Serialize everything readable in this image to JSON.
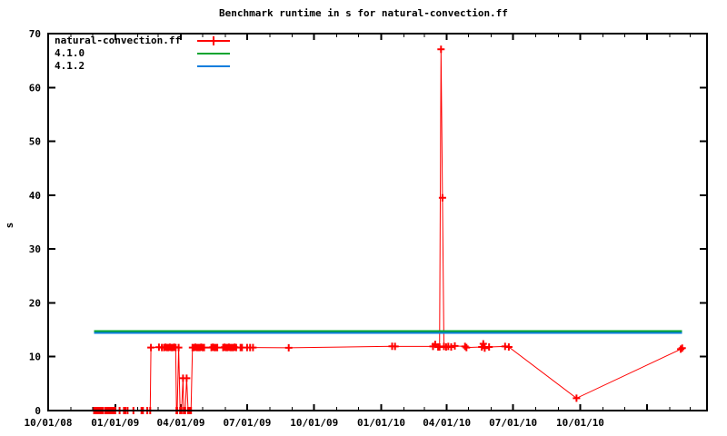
{
  "chart_data": {
    "type": "line",
    "title": "Benchmark runtime in s for natural-convection.ff",
    "xlabel": "",
    "ylabel": "s",
    "ylim": [
      0,
      70
    ],
    "y_ticks": [
      0,
      10,
      20,
      30,
      40,
      50,
      60,
      70
    ],
    "x_range": [
      "2008-10-01",
      "2011-03-24"
    ],
    "x_tick_labels": [
      {
        "date": "2008-10-01",
        "label": "10/01/08"
      },
      {
        "date": "2009-01-01",
        "label": "01/01/09"
      },
      {
        "date": "2009-04-01",
        "label": "04/01/09"
      },
      {
        "date": "2009-07-01",
        "label": "07/01/09"
      },
      {
        "date": "2009-10-01",
        "label": "10/01/09"
      },
      {
        "date": "2010-01-01",
        "label": "01/01/10"
      },
      {
        "date": "2010-04-01",
        "label": "04/01/10"
      },
      {
        "date": "2010-07-01",
        "label": "07/01/10"
      },
      {
        "date": "2010-10-01",
        "label": "10/01/10"
      }
    ],
    "grid": false,
    "legend_position": "top-left",
    "axis_color": "#000000",
    "background_color": "#ffffff",
    "series": [
      {
        "name": "natural-convection.ff",
        "type": "linespoints",
        "marker": "plus",
        "color": "#ff0000",
        "points": [
          [
            "2008-12-03",
            0
          ],
          [
            "2008-12-05",
            0
          ],
          [
            "2008-12-07",
            0
          ],
          [
            "2008-12-09",
            0
          ],
          [
            "2008-12-11",
            0
          ],
          [
            "2008-12-13",
            0
          ],
          [
            "2008-12-15",
            0
          ],
          [
            "2008-12-18",
            0
          ],
          [
            "2008-12-20",
            0
          ],
          [
            "2008-12-22",
            0
          ],
          [
            "2008-12-24",
            0
          ],
          [
            "2008-12-26",
            0
          ],
          [
            "2008-12-28",
            0
          ],
          [
            "2008-12-30",
            0
          ],
          [
            "2009-01-01",
            0
          ],
          [
            "2009-01-07",
            0
          ],
          [
            "2009-01-13",
            0
          ],
          [
            "2009-01-15",
            0
          ],
          [
            "2009-01-18",
            0
          ],
          [
            "2009-01-26",
            0
          ],
          [
            "2009-02-06",
            0
          ],
          [
            "2009-02-08",
            0
          ],
          [
            "2009-02-14",
            0
          ],
          [
            "2009-02-18",
            0
          ],
          [
            "2009-02-19",
            11.7
          ],
          [
            "2009-03-02",
            11.75
          ],
          [
            "2009-03-06",
            11.7
          ],
          [
            "2009-03-09",
            11.7
          ],
          [
            "2009-03-11",
            11.75
          ],
          [
            "2009-03-13",
            11.7
          ],
          [
            "2009-03-15",
            11.7
          ],
          [
            "2009-03-17",
            11.75
          ],
          [
            "2009-03-19",
            11.7
          ],
          [
            "2009-03-21",
            11.7
          ],
          [
            "2009-03-23",
            11.75
          ],
          [
            "2009-03-25",
            11.7
          ],
          [
            "2009-03-26",
            0
          ],
          [
            "2009-03-27",
            0
          ],
          [
            "2009-03-29",
            11.7
          ],
          [
            "2009-03-31",
            0
          ],
          [
            "2009-04-02",
            0
          ],
          [
            "2009-04-04",
            6.0
          ],
          [
            "2009-04-05",
            0
          ],
          [
            "2009-04-07",
            0
          ],
          [
            "2009-04-09",
            6.0
          ],
          [
            "2009-04-11",
            0
          ],
          [
            "2009-04-13",
            0
          ],
          [
            "2009-04-15",
            0
          ],
          [
            "2009-04-17",
            11.7
          ],
          [
            "2009-04-19",
            11.7
          ],
          [
            "2009-04-21",
            11.75
          ],
          [
            "2009-04-23",
            11.7
          ],
          [
            "2009-04-25",
            11.7
          ],
          [
            "2009-04-27",
            11.7
          ],
          [
            "2009-04-29",
            11.75
          ],
          [
            "2009-05-01",
            11.7
          ],
          [
            "2009-05-03",
            11.7
          ],
          [
            "2009-05-13",
            11.7
          ],
          [
            "2009-05-15",
            11.75
          ],
          [
            "2009-05-17",
            11.7
          ],
          [
            "2009-05-19",
            11.7
          ],
          [
            "2009-05-21",
            11.7
          ],
          [
            "2009-05-29",
            11.7
          ],
          [
            "2009-05-31",
            11.75
          ],
          [
            "2009-06-02",
            11.7
          ],
          [
            "2009-06-04",
            11.7
          ],
          [
            "2009-06-06",
            11.75
          ],
          [
            "2009-06-08",
            11.7
          ],
          [
            "2009-06-10",
            11.7
          ],
          [
            "2009-06-12",
            11.7
          ],
          [
            "2009-06-14",
            11.75
          ],
          [
            "2009-06-16",
            11.7
          ],
          [
            "2009-06-22",
            11.7
          ],
          [
            "2009-06-24",
            11.7
          ],
          [
            "2009-07-01",
            11.7
          ],
          [
            "2009-07-05",
            11.7
          ],
          [
            "2009-07-09",
            11.7
          ],
          [
            "2009-08-27",
            11.65
          ],
          [
            "2010-01-16",
            11.95
          ],
          [
            "2010-01-20",
            11.9
          ],
          [
            "2010-03-13",
            11.9
          ],
          [
            "2010-03-16",
            12.3
          ],
          [
            "2010-03-20",
            11.8
          ],
          [
            "2010-03-22",
            11.8
          ],
          [
            "2010-03-24",
            67.1
          ],
          [
            "2010-03-26",
            39.5
          ],
          [
            "2010-03-28",
            11.9
          ],
          [
            "2010-03-31",
            11.8
          ],
          [
            "2010-04-03",
            11.9
          ],
          [
            "2010-04-07",
            11.8
          ],
          [
            "2010-04-12",
            12.0
          ],
          [
            "2010-04-26",
            11.9
          ],
          [
            "2010-04-28",
            11.7
          ],
          [
            "2010-05-19",
            11.8
          ],
          [
            "2010-05-21",
            12.4
          ],
          [
            "2010-05-23",
            11.6
          ],
          [
            "2010-05-29",
            11.8
          ],
          [
            "2010-06-20",
            11.9
          ],
          [
            "2010-06-25",
            11.8
          ],
          [
            "2010-09-26",
            2.3
          ],
          [
            "2011-02-16",
            11.4
          ],
          [
            "2011-02-18",
            11.6
          ]
        ]
      },
      {
        "name": "4.1.0",
        "type": "line",
        "color": "#00a42e",
        "value": 14.8,
        "span": [
          "2008-12-03",
          "2011-02-18"
        ]
      },
      {
        "name": "4.1.2",
        "type": "line",
        "color": "#0b7ddd",
        "value": 14.4,
        "span": [
          "2008-12-03",
          "2011-02-18"
        ]
      }
    ]
  }
}
